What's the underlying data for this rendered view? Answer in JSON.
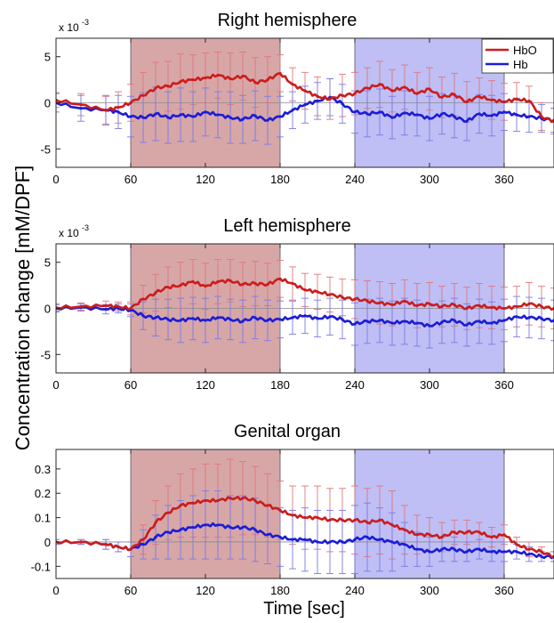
{
  "figure": {
    "ylabel": "Concentration change [mM/DPF]",
    "xlabel": "Time [sec]"
  },
  "colors": {
    "hbo": "#cc1c1c",
    "hb": "#1c1cd6",
    "hbo_errorbar": "#e0767a",
    "hb_errorbar": "#7a7ae6",
    "task_shade": "#c98a8a",
    "rest_shade": "#a9a9f2"
  },
  "legend": {
    "items": [
      "HbO",
      "Hb"
    ],
    "placement": "top-right"
  },
  "chart_data": [
    {
      "type": "line",
      "title": "Right hemisphere",
      "exponent_label": "x 10",
      "exponent_power": "-3",
      "xlim": [
        0,
        400
      ],
      "ylim": [
        -7,
        7
      ],
      "xticks": [
        0,
        60,
        120,
        180,
        240,
        300,
        360
      ],
      "xtick_labels": [
        "0",
        "60",
        "120",
        "180",
        "240",
        "300",
        "360"
      ],
      "yticks": [
        5,
        0,
        -5
      ],
      "ytick_labels": [
        "5",
        "0",
        "-5"
      ],
      "shaded_regions": [
        {
          "x": [
            60,
            180
          ],
          "color_key": "task_shade"
        },
        {
          "x": [
            240,
            360
          ],
          "color_key": "rest_shade"
        }
      ],
      "series": [
        {
          "name": "HbO",
          "color_key": "hbo",
          "x": [
            0,
            20,
            40,
            50,
            60,
            70,
            80,
            90,
            100,
            110,
            120,
            130,
            140,
            150,
            160,
            170,
            180,
            190,
            200,
            210,
            220,
            230,
            240,
            250,
            260,
            270,
            280,
            290,
            300,
            310,
            320,
            330,
            340,
            350,
            360,
            370,
            380,
            390,
            400
          ],
          "y": [
            0.3,
            -0.2,
            -0.8,
            -0.5,
            0.0,
            0.8,
            1.6,
            1.8,
            2.3,
            2.5,
            2.7,
            3.0,
            2.6,
            2.9,
            2.2,
            2.5,
            3.2,
            2.0,
            1.3,
            0.7,
            0.4,
            0.8,
            1.0,
            1.6,
            2.0,
            1.3,
            1.7,
            1.0,
            1.5,
            0.6,
            0.9,
            0.1,
            0.7,
            0.3,
            0.1,
            0.4,
            0.2,
            -1.5,
            -2.0
          ],
          "error": [
            0.8,
            1.2,
            1.5,
            1.7,
            2.0,
            2.5,
            2.8,
            2.7,
            3.0,
            2.7,
            2.7,
            2.5,
            2.8,
            2.6,
            2.7,
            2.5,
            2.0,
            1.8,
            2.0,
            2.1,
            2.2,
            2.3,
            2.3,
            2.2,
            2.5,
            2.3,
            2.4,
            2.3,
            2.3,
            2.2,
            2.3,
            2.2,
            2.0,
            2.1,
            2.0,
            1.8,
            1.6,
            1.5,
            1.4
          ]
        },
        {
          "name": "Hb",
          "color_key": "hb",
          "x": [
            0,
            20,
            40,
            50,
            60,
            70,
            80,
            90,
            100,
            110,
            120,
            130,
            140,
            150,
            160,
            170,
            180,
            190,
            200,
            210,
            220,
            230,
            240,
            250,
            260,
            270,
            280,
            290,
            300,
            310,
            320,
            330,
            340,
            350,
            360,
            370,
            380,
            390,
            400
          ],
          "y": [
            0.0,
            -0.6,
            -0.8,
            -1.0,
            -1.5,
            -1.6,
            -1.2,
            -1.6,
            -1.3,
            -1.5,
            -1.0,
            -1.3,
            -1.6,
            -1.8,
            -1.4,
            -1.9,
            -1.5,
            -0.8,
            -0.2,
            0.2,
            0.6,
            -0.1,
            -1.0,
            -1.2,
            -1.0,
            -1.6,
            -1.1,
            -1.3,
            -1.7,
            -1.2,
            -1.5,
            -2.0,
            -1.2,
            -1.4,
            -1.0,
            -1.3,
            -1.5,
            -1.7,
            -1.9
          ],
          "error": [
            1.0,
            1.4,
            1.6,
            1.8,
            2.2,
            2.7,
            2.9,
            2.8,
            2.9,
            2.7,
            2.6,
            2.5,
            2.8,
            2.6,
            2.7,
            2.6,
            2.2,
            2.0,
            2.0,
            2.0,
            2.0,
            2.1,
            2.3,
            2.5,
            2.5,
            2.3,
            2.4,
            2.3,
            2.4,
            2.2,
            2.3,
            2.1,
            2.1,
            2.2,
            2.0,
            1.8,
            1.7,
            1.5,
            1.3
          ]
        }
      ]
    },
    {
      "type": "line",
      "title": "Left hemisphere",
      "exponent_label": "x 10",
      "exponent_power": "-3",
      "xlim": [
        0,
        400
      ],
      "ylim": [
        -7,
        7
      ],
      "xticks": [
        0,
        60,
        120,
        180,
        240,
        300,
        360
      ],
      "xtick_labels": [
        "0",
        "60",
        "120",
        "180",
        "240",
        "300",
        "360"
      ],
      "yticks": [
        5,
        0,
        -5
      ],
      "ytick_labels": [
        "5",
        "0",
        "-5"
      ],
      "shaded_regions": [
        {
          "x": [
            60,
            180
          ],
          "color_key": "task_shade"
        },
        {
          "x": [
            240,
            360
          ],
          "color_key": "rest_shade"
        }
      ],
      "series": [
        {
          "name": "HbO",
          "color_key": "hbo",
          "x": [
            0,
            20,
            40,
            50,
            60,
            70,
            80,
            90,
            100,
            110,
            120,
            130,
            140,
            150,
            160,
            170,
            180,
            190,
            200,
            210,
            220,
            230,
            240,
            250,
            260,
            270,
            280,
            290,
            300,
            310,
            320,
            330,
            340,
            350,
            360,
            370,
            380,
            390,
            400
          ],
          "y": [
            0.1,
            0.2,
            0.3,
            0.2,
            0.0,
            1.0,
            1.7,
            2.3,
            2.5,
            2.9,
            2.4,
            2.9,
            3.0,
            2.6,
            2.7,
            2.6,
            3.2,
            2.7,
            2.0,
            1.8,
            1.5,
            1.2,
            1.0,
            0.8,
            0.6,
            0.4,
            0.8,
            0.3,
            0.5,
            0.2,
            0.4,
            0.0,
            0.3,
            0.1,
            0.0,
            0.2,
            0.5,
            0.2,
            0.0
          ],
          "error": [
            0.4,
            0.4,
            0.5,
            0.5,
            0.7,
            1.5,
            2.0,
            2.2,
            2.5,
            2.4,
            2.5,
            2.4,
            2.3,
            2.4,
            2.4,
            2.3,
            2.0,
            1.8,
            1.8,
            1.9,
            1.9,
            2.0,
            2.1,
            2.2,
            2.3,
            2.3,
            2.3,
            2.4,
            2.3,
            2.2,
            2.3,
            2.3,
            2.4,
            2.3,
            2.3,
            2.2,
            2.3,
            2.2,
            2.2
          ]
        },
        {
          "name": "Hb",
          "color_key": "hb",
          "x": [
            0,
            20,
            40,
            50,
            60,
            70,
            80,
            90,
            100,
            110,
            120,
            130,
            140,
            150,
            160,
            170,
            180,
            190,
            200,
            210,
            220,
            230,
            240,
            250,
            260,
            270,
            280,
            290,
            300,
            310,
            320,
            330,
            340,
            350,
            360,
            370,
            380,
            390,
            400
          ],
          "y": [
            0.0,
            0.1,
            -0.1,
            0.0,
            -0.2,
            -0.8,
            -1.0,
            -1.2,
            -1.3,
            -1.1,
            -1.3,
            -1.0,
            -1.2,
            -1.4,
            -1.0,
            -1.3,
            -1.2,
            -1.0,
            -0.8,
            -1.1,
            -0.9,
            -1.2,
            -1.7,
            -1.4,
            -1.3,
            -1.6,
            -1.4,
            -1.6,
            -1.9,
            -1.5,
            -1.3,
            -1.8,
            -1.4,
            -1.6,
            -1.3,
            -0.9,
            -1.0,
            -1.1,
            -1.3
          ],
          "error": [
            0.4,
            0.4,
            0.5,
            0.5,
            0.7,
            1.5,
            2.0,
            2.2,
            2.4,
            2.3,
            2.4,
            2.3,
            2.2,
            2.3,
            2.3,
            2.2,
            2.0,
            1.8,
            1.9,
            2.0,
            2.0,
            2.1,
            2.3,
            2.4,
            2.4,
            2.4,
            2.5,
            2.5,
            2.4,
            2.3,
            2.4,
            2.3,
            2.4,
            2.3,
            2.3,
            2.2,
            2.2,
            2.2,
            2.2
          ]
        }
      ]
    },
    {
      "type": "line",
      "title": "Genital organ",
      "xlim": [
        0,
        400
      ],
      "ylim": [
        -0.15,
        0.38
      ],
      "xticks": [
        0,
        60,
        120,
        180,
        240,
        300,
        360
      ],
      "xtick_labels": [
        "0",
        "60",
        "120",
        "180",
        "240",
        "300",
        "360"
      ],
      "yticks": [
        0.3,
        0.2,
        0.1,
        0,
        -0.1
      ],
      "ytick_labels": [
        "0.3",
        "0.2",
        "0.1",
        "0",
        "-0.1"
      ],
      "shaded_regions": [
        {
          "x": [
            60,
            180
          ],
          "color_key": "task_shade"
        },
        {
          "x": [
            240,
            360
          ],
          "color_key": "rest_shade"
        }
      ],
      "series": [
        {
          "name": "HbO",
          "color_key": "hbo",
          "x": [
            0,
            20,
            40,
            50,
            60,
            70,
            80,
            90,
            100,
            110,
            120,
            130,
            140,
            150,
            160,
            170,
            180,
            190,
            200,
            210,
            220,
            230,
            240,
            250,
            260,
            270,
            280,
            290,
            300,
            310,
            320,
            330,
            340,
            350,
            360,
            370,
            380,
            390,
            400
          ],
          "y": [
            0.0,
            0.0,
            -0.01,
            -0.02,
            -0.03,
            0.01,
            0.08,
            0.12,
            0.15,
            0.16,
            0.17,
            0.17,
            0.18,
            0.18,
            0.17,
            0.15,
            0.13,
            0.11,
            0.1,
            0.1,
            0.09,
            0.09,
            0.09,
            0.08,
            0.09,
            0.07,
            0.05,
            0.03,
            0.03,
            0.02,
            0.04,
            0.04,
            0.04,
            0.02,
            0.03,
            -0.01,
            -0.03,
            -0.04,
            -0.06
          ],
          "error": [
            0.01,
            0.01,
            0.02,
            0.02,
            0.03,
            0.06,
            0.09,
            0.11,
            0.13,
            0.14,
            0.15,
            0.15,
            0.16,
            0.15,
            0.14,
            0.13,
            0.12,
            0.12,
            0.13,
            0.13,
            0.13,
            0.13,
            0.14,
            0.14,
            0.14,
            0.14,
            0.1,
            0.08,
            0.07,
            0.06,
            0.05,
            0.05,
            0.04,
            0.04,
            0.04,
            0.03,
            0.03,
            0.02,
            0.02
          ]
        },
        {
          "name": "Hb",
          "color_key": "hb",
          "x": [
            0,
            20,
            40,
            50,
            60,
            70,
            80,
            90,
            100,
            110,
            120,
            130,
            140,
            150,
            160,
            170,
            180,
            190,
            200,
            210,
            220,
            230,
            240,
            250,
            260,
            270,
            280,
            290,
            300,
            310,
            320,
            330,
            340,
            350,
            360,
            370,
            380,
            390,
            400
          ],
          "y": [
            0.0,
            0.0,
            -0.01,
            -0.02,
            -0.03,
            -0.01,
            0.02,
            0.04,
            0.05,
            0.06,
            0.07,
            0.07,
            0.06,
            0.06,
            0.05,
            0.03,
            0.02,
            0.01,
            0.01,
            0.0,
            0.0,
            0.0,
            0.01,
            0.02,
            0.01,
            0.0,
            -0.01,
            -0.03,
            -0.04,
            -0.03,
            -0.03,
            -0.04,
            -0.03,
            -0.04,
            -0.04,
            -0.04,
            -0.05,
            -0.06,
            -0.06
          ],
          "error": [
            0.01,
            0.01,
            0.02,
            0.02,
            0.03,
            0.06,
            0.09,
            0.11,
            0.12,
            0.13,
            0.14,
            0.14,
            0.13,
            0.13,
            0.13,
            0.12,
            0.12,
            0.12,
            0.13,
            0.13,
            0.13,
            0.13,
            0.14,
            0.14,
            0.13,
            0.12,
            0.09,
            0.07,
            0.06,
            0.05,
            0.05,
            0.04,
            0.04,
            0.04,
            0.04,
            0.03,
            0.03,
            0.02,
            0.02
          ]
        }
      ]
    }
  ]
}
